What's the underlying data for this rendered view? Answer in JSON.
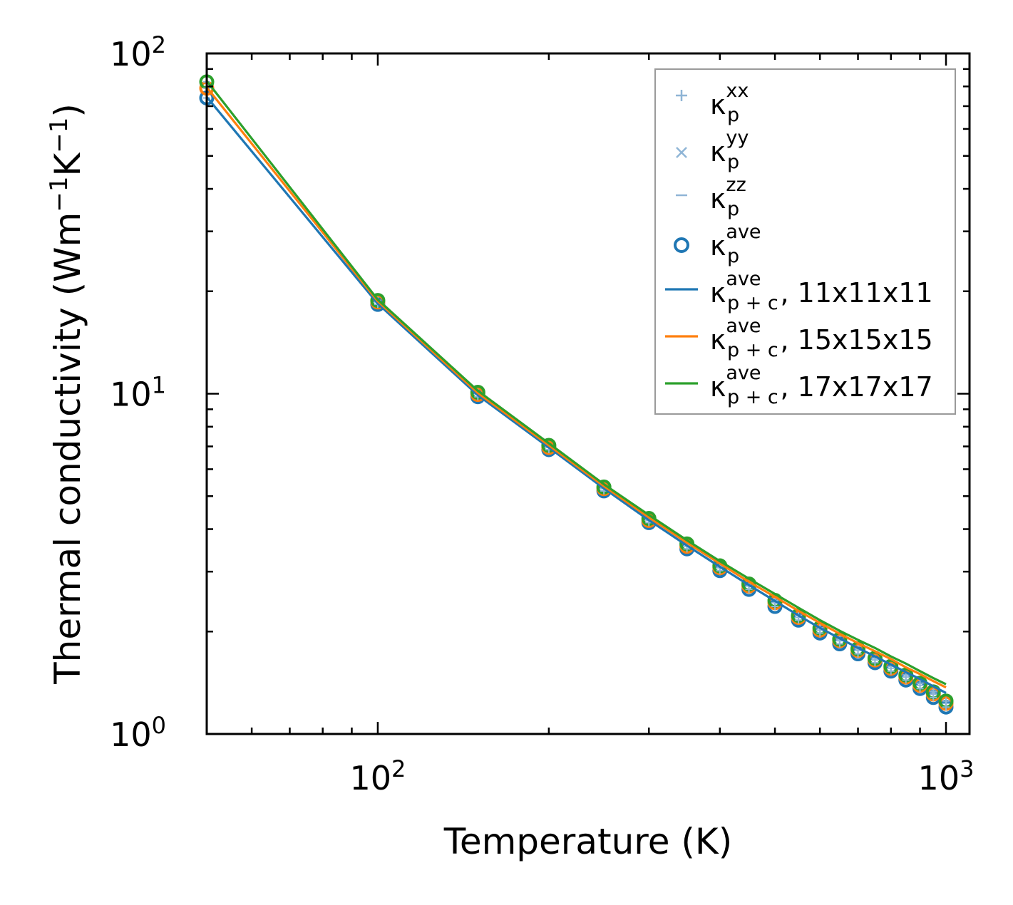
{
  "chart_data": {
    "type": "line",
    "xscale": "log",
    "yscale": "log",
    "xlim": [
      50,
      1100
    ],
    "ylim": [
      1,
      100
    ],
    "xlabel": "Temperature (K)",
    "ylabel": {
      "text": "Thermal conductivity (Wm",
      "exp1": "−1",
      "mid": "K",
      "exp2": "−1",
      "close": ")"
    },
    "xticks": [
      {
        "value": 100,
        "base": "10",
        "exp": "2"
      },
      {
        "value": 1000,
        "base": "10",
        "exp": "3"
      }
    ],
    "yticks": [
      {
        "value": 1,
        "base": "10",
        "exp": "0"
      },
      {
        "value": 10,
        "base": "10",
        "exp": "1"
      },
      {
        "value": 100,
        "base": "10",
        "exp": "2"
      }
    ],
    "temperatures": [
      50,
      100,
      150,
      200,
      250,
      300,
      350,
      400,
      450,
      500,
      550,
      600,
      650,
      700,
      750,
      800,
      850,
      900,
      950,
      1000
    ],
    "colors": {
      "blue": "#1f77b4",
      "orange": "#ff7f0e",
      "green": "#2ca02c",
      "light_blue": "#8fb5d6"
    },
    "series": [
      {
        "name": "11x11x11",
        "color": "#1f77b4",
        "kappa_p_ave": [
          74.0,
          18.3,
          9.8,
          6.85,
          5.18,
          4.18,
          3.5,
          3.02,
          2.66,
          2.37,
          2.16,
          1.98,
          1.84,
          1.72,
          1.62,
          1.53,
          1.44,
          1.36,
          1.28,
          1.2
        ],
        "kappa_pc_ave": [
          74.5,
          18.4,
          9.9,
          6.95,
          5.27,
          4.25,
          3.58,
          3.1,
          2.74,
          2.46,
          2.23,
          2.05,
          1.91,
          1.79,
          1.69,
          1.6,
          1.52,
          1.45,
          1.38,
          1.32
        ]
      },
      {
        "name": "15x15x15",
        "color": "#ff7f0e",
        "kappa_p_ave": [
          79.0,
          18.6,
          9.95,
          6.95,
          5.26,
          4.24,
          3.56,
          3.08,
          2.72,
          2.43,
          2.2,
          2.02,
          1.88,
          1.76,
          1.65,
          1.56,
          1.47,
          1.39,
          1.31,
          1.23
        ],
        "kappa_pc_ave": [
          79.5,
          18.7,
          10.05,
          7.05,
          5.35,
          4.33,
          3.65,
          3.17,
          2.8,
          2.53,
          2.3,
          2.12,
          1.97,
          1.85,
          1.75,
          1.66,
          1.57,
          1.5,
          1.43,
          1.37
        ]
      },
      {
        "name": "17x17x17",
        "color": "#2ca02c",
        "kappa_p_ave": [
          82.5,
          18.8,
          10.1,
          7.05,
          5.32,
          4.3,
          3.62,
          3.12,
          2.76,
          2.47,
          2.23,
          2.05,
          1.9,
          1.78,
          1.67,
          1.58,
          1.49,
          1.41,
          1.33,
          1.25
        ],
        "kappa_pc_ave": [
          83.0,
          18.9,
          10.2,
          7.15,
          5.42,
          4.4,
          3.71,
          3.22,
          2.86,
          2.58,
          2.35,
          2.16,
          2.01,
          1.89,
          1.79,
          1.69,
          1.61,
          1.53,
          1.46,
          1.4
        ]
      }
    ],
    "legend": {
      "position": "top-right",
      "entries": [
        {
          "marker": "plus",
          "color": "#8fb5d6",
          "base": "κ",
          "sub": "p",
          "sup": "xx",
          "tail": ""
        },
        {
          "marker": "x",
          "color": "#8fb5d6",
          "base": "κ",
          "sub": "p",
          "sup": "yy",
          "tail": ""
        },
        {
          "marker": "dash",
          "color": "#8fb5d6",
          "base": "κ",
          "sub": "p",
          "sup": "zz",
          "tail": ""
        },
        {
          "marker": "circle",
          "color": "#1f77b4",
          "base": "κ",
          "sub": "p",
          "sup": "ave",
          "tail": ""
        },
        {
          "marker": "line",
          "color": "#1f77b4",
          "base": "κ",
          "sub": "p + c",
          "sup": "ave",
          "tail": ", 11x11x11"
        },
        {
          "marker": "line",
          "color": "#ff7f0e",
          "base": "κ",
          "sub": "p + c",
          "sup": "ave",
          "tail": ", 15x15x15"
        },
        {
          "marker": "line",
          "color": "#2ca02c",
          "base": "κ",
          "sub": "p + c",
          "sup": "ave",
          "tail": ", 17x17x17"
        }
      ]
    }
  }
}
